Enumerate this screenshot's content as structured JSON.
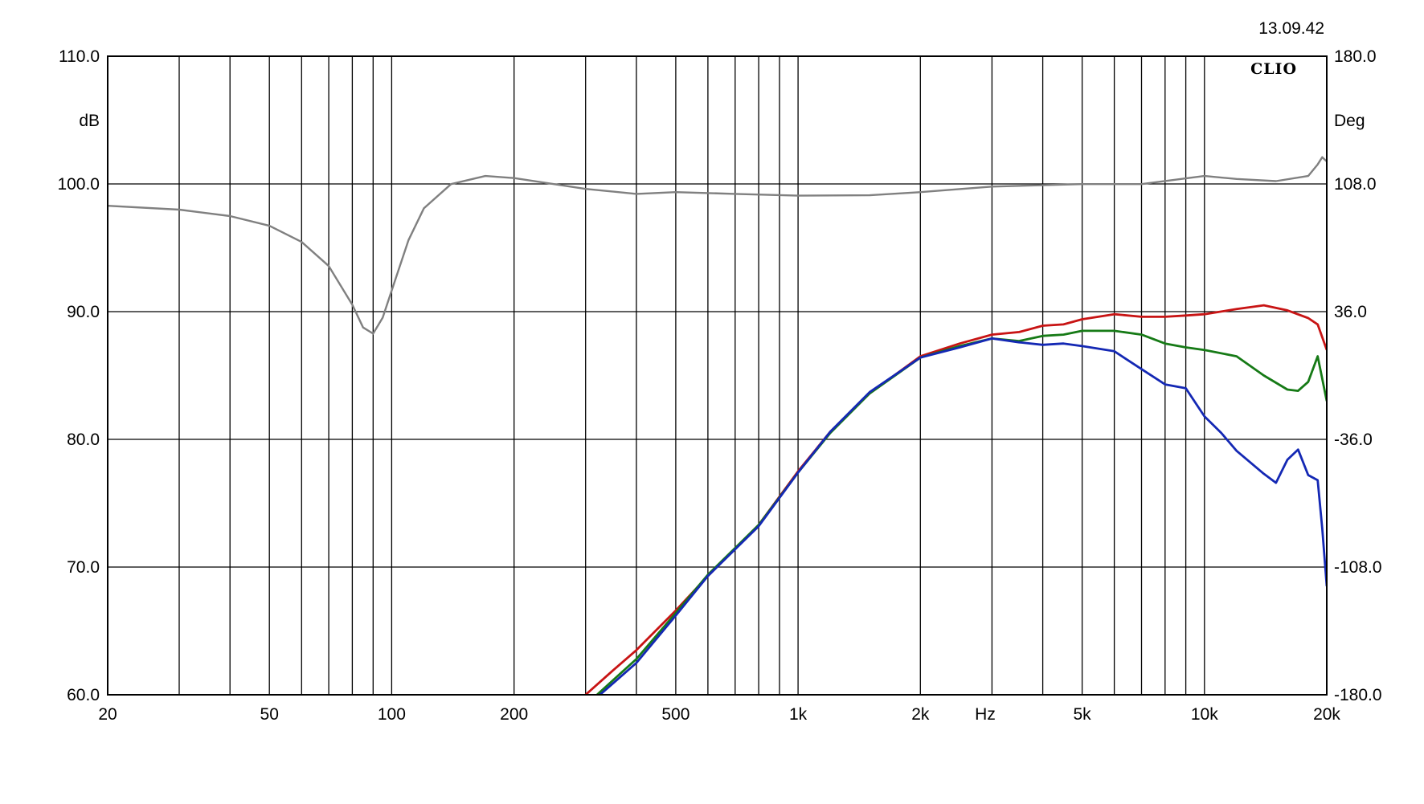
{
  "chart_data": {
    "type": "line",
    "timestamp": "13.09.42",
    "brand": "CLIO",
    "xlabel": "Hz",
    "ylabel_left": "dB",
    "ylabel_right": "Deg",
    "x_scale": "log",
    "xlim": [
      20,
      20000
    ],
    "ylim": [
      60,
      110
    ],
    "ylim_right": [
      -180,
      180
    ],
    "grid": true,
    "x_tick_labels": [
      {
        "value": 20,
        "label": "20"
      },
      {
        "value": 50,
        "label": "50"
      },
      {
        "value": 100,
        "label": "100"
      },
      {
        "value": 200,
        "label": "200"
      },
      {
        "value": 500,
        "label": "500"
      },
      {
        "value": 1000,
        "label": "1k"
      },
      {
        "value": 2000,
        "label": "2k"
      },
      {
        "value": 5000,
        "label": "5k"
      },
      {
        "value": 10000,
        "label": "10k"
      },
      {
        "value": 20000,
        "label": "20k"
      }
    ],
    "y_ticks": [
      {
        "value": 110,
        "label": "110.0"
      },
      {
        "value": 100,
        "label": "100.0"
      },
      {
        "value": 90,
        "label": "90.0"
      },
      {
        "value": 80,
        "label": "80.0"
      },
      {
        "value": 70,
        "label": "70.0"
      },
      {
        "value": 60,
        "label": "60.0"
      }
    ],
    "y_right_ticks": [
      {
        "value": 180,
        "label": "180.0"
      },
      {
        "value": 108,
        "label": "108.0"
      },
      {
        "value": 36,
        "label": "36.0"
      },
      {
        "value": -36,
        "label": "-36.0"
      },
      {
        "value": -108,
        "label": "-108.0"
      },
      {
        "value": -180,
        "label": "-180.0"
      }
    ],
    "series": [
      {
        "color": "#c81414",
        "axis": "left",
        "x": [
          300,
          350,
          400,
          500,
          600,
          800,
          1000,
          1200,
          1500,
          2000,
          2500,
          3000,
          3500,
          4000,
          4500,
          5000,
          6000,
          7000,
          8000,
          9000,
          10000,
          12000,
          14000,
          16000,
          18000,
          19000,
          20000
        ],
        "y": [
          60,
          61.9,
          63.5,
          66.6,
          69.3,
          73.3,
          77.5,
          80.6,
          83.6,
          86.5,
          87.5,
          88.2,
          88.4,
          88.9,
          89,
          89.4,
          89.8,
          89.6,
          89.6,
          89.7,
          89.8,
          90.2,
          90.5,
          90.1,
          89.5,
          89,
          87
        ]
      },
      {
        "color": "#167a16",
        "axis": "left",
        "x": [
          320,
          400,
          500,
          600,
          800,
          1000,
          1200,
          1500,
          2000,
          2500,
          3000,
          3500,
          4000,
          4500,
          5000,
          6000,
          7000,
          8000,
          9000,
          10000,
          12000,
          14000,
          16000,
          17000,
          18000,
          19000,
          20000
        ],
        "y": [
          60,
          62.8,
          66.4,
          69.4,
          73.3,
          77.4,
          80.5,
          83.6,
          86.4,
          87.3,
          87.9,
          87.7,
          88.1,
          88.2,
          88.5,
          88.5,
          88.2,
          87.5,
          87.2,
          87,
          86.5,
          85,
          83.9,
          83.8,
          84.5,
          86.5,
          83
        ]
      },
      {
        "color": "#1428b4",
        "axis": "left",
        "x": [
          320,
          400,
          500,
          600,
          800,
          1000,
          1200,
          1500,
          2000,
          2500,
          3000,
          3500,
          4000,
          4500,
          5000,
          6000,
          7000,
          8000,
          9000,
          10000,
          11000,
          12000,
          14000,
          15000,
          16000,
          17000,
          18000,
          19000,
          19500,
          20000
        ],
        "y": [
          59.8,
          62.5,
          66.2,
          69.3,
          73.2,
          77.4,
          80.6,
          83.7,
          86.4,
          87.2,
          87.9,
          87.6,
          87.4,
          87.5,
          87.3,
          86.9,
          85.5,
          84.3,
          84,
          81.8,
          80.5,
          79.1,
          77.3,
          76.6,
          78.4,
          79.2,
          77.2,
          76.8,
          73,
          68.5
        ]
      },
      {
        "color": "#808080",
        "axis": "right",
        "x": [
          20,
          30,
          40,
          50,
          60,
          70,
          80,
          85,
          90,
          95,
          100,
          110,
          120,
          140,
          170,
          200,
          300,
          400,
          500,
          700,
          1000,
          1500,
          2000,
          3000,
          5000,
          7000,
          10000,
          12000,
          15000,
          18000,
          19000,
          19500,
          20000
        ],
        "y": [
          95.7,
          93.5,
          89.9,
          84.4,
          75.3,
          61.7,
          39.9,
          27.1,
          23.6,
          32.6,
          47.9,
          76.4,
          94.3,
          107.9,
          112.5,
          111.3,
          105.2,
          102.4,
          103.4,
          102.4,
          101.4,
          101.6,
          103.4,
          106.5,
          107.9,
          107.9,
          112.5,
          110.8,
          109.6,
          112.5,
          119,
          123.1,
          120.7
        ]
      }
    ]
  }
}
